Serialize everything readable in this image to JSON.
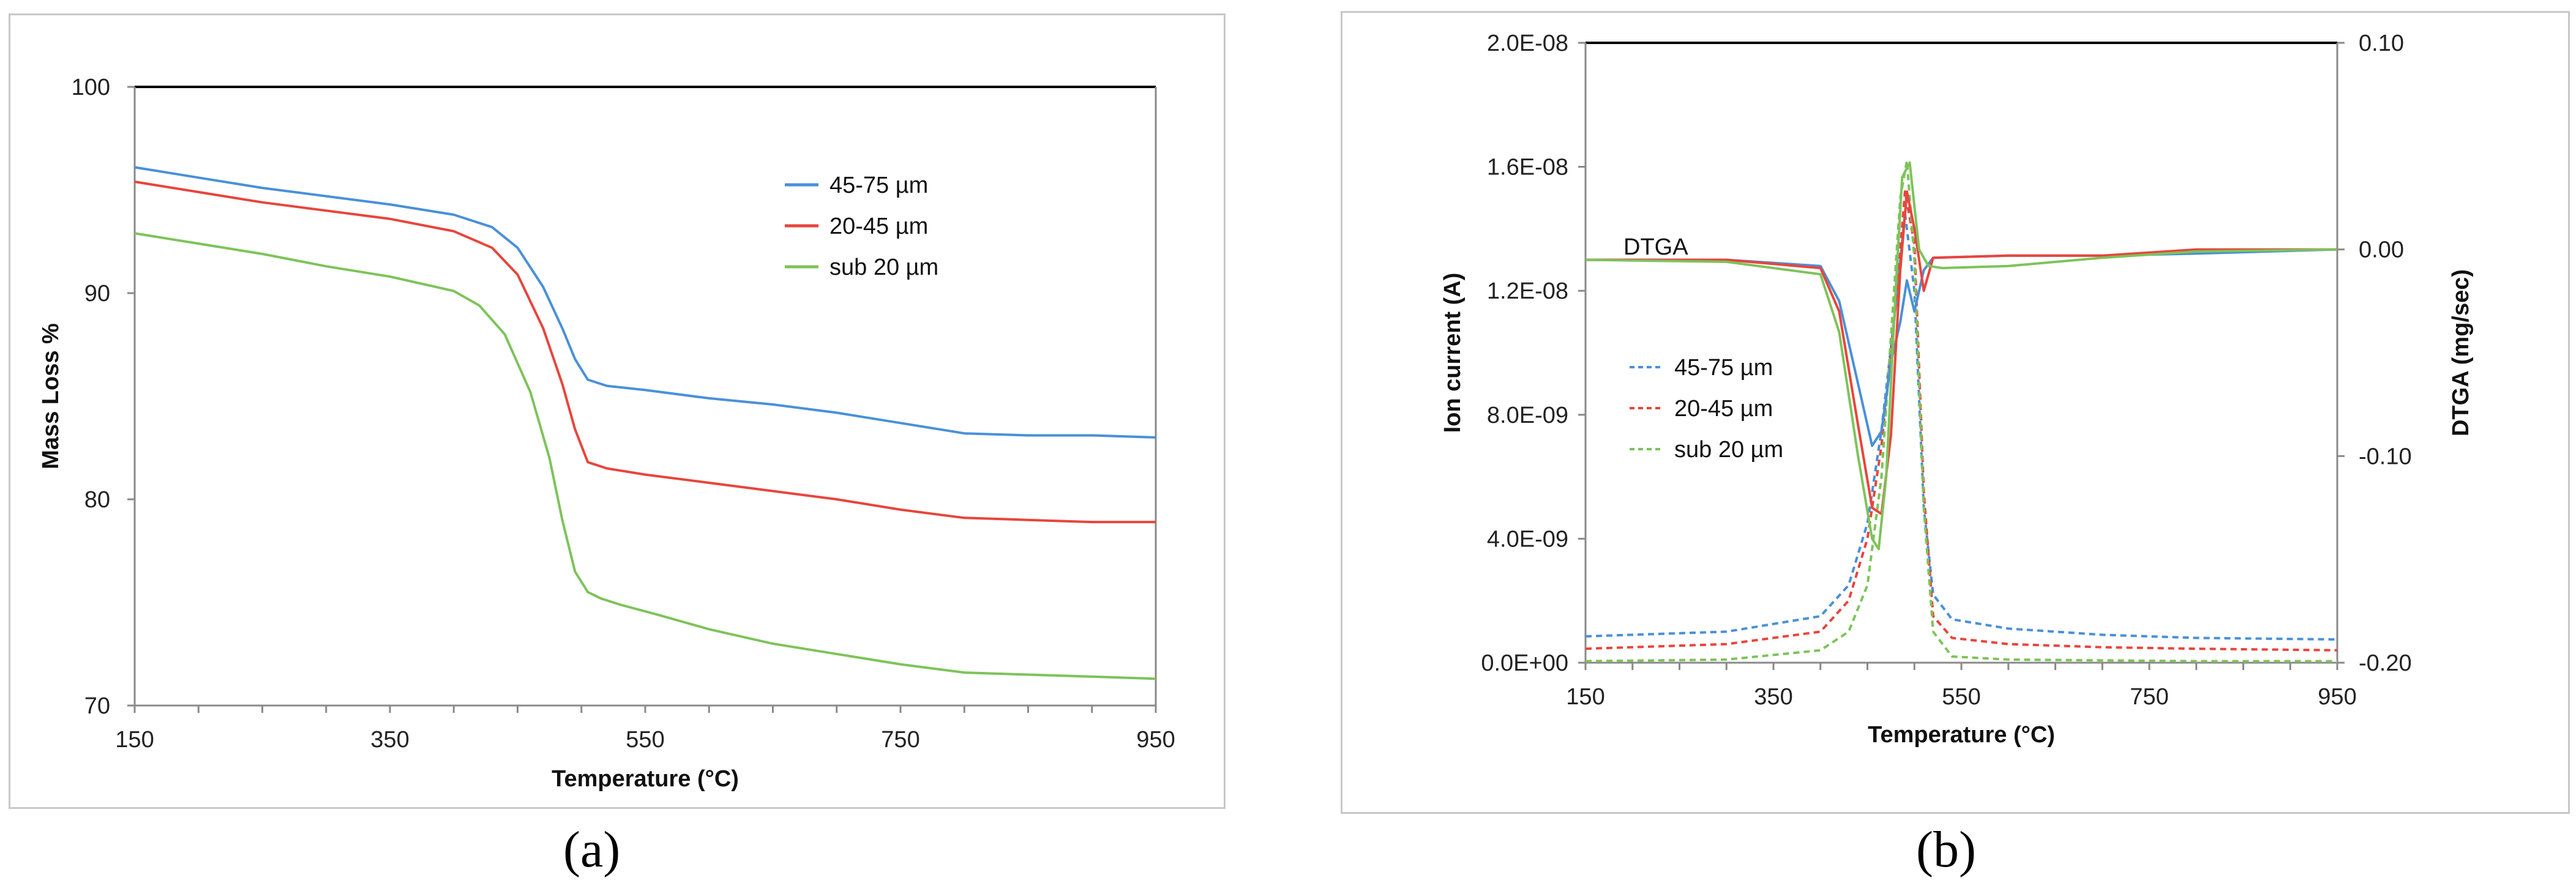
{
  "panel_a_letter": "(a)",
  "panel_b_letter": "(b)",
  "chart_data": [
    {
      "type": "line",
      "panel": "a",
      "xlabel": "Temperature (°C)",
      "ylabel": "Mass Loss %",
      "xlim": [
        150,
        950
      ],
      "ylim": [
        70,
        100
      ],
      "xticks": [
        150,
        350,
        550,
        750,
        950
      ],
      "yticks": [
        70,
        80,
        90,
        100
      ],
      "legend_position": "top-right",
      "colors": {
        "45-75 µm": "#4a90d9",
        "20-45 µm": "#e8453c",
        "sub 20 µm": "#7dc35a"
      },
      "series": [
        {
          "name": "45-75 µm",
          "color": "#4a90d9",
          "x": [
            150,
            200,
            250,
            300,
            350,
            400,
            430,
            450,
            470,
            485,
            495,
            505,
            520,
            550,
            600,
            650,
            700,
            750,
            800,
            850,
            900,
            950
          ],
          "y": [
            96.1,
            95.6,
            95.1,
            94.7,
            94.3,
            93.8,
            93.2,
            92.2,
            90.3,
            88.3,
            86.8,
            85.8,
            85.5,
            85.3,
            84.9,
            84.6,
            84.2,
            83.7,
            83.2,
            83.1,
            83.1,
            83.0
          ]
        },
        {
          "name": "20-45 µm",
          "color": "#e8453c",
          "x": [
            150,
            200,
            250,
            300,
            350,
            400,
            430,
            450,
            470,
            485,
            495,
            505,
            520,
            550,
            600,
            650,
            700,
            750,
            800,
            850,
            900,
            950
          ],
          "y": [
            95.4,
            94.9,
            94.4,
            94.0,
            93.6,
            93.0,
            92.2,
            90.9,
            88.3,
            85.6,
            83.4,
            81.8,
            81.5,
            81.2,
            80.8,
            80.4,
            80.0,
            79.5,
            79.1,
            79.0,
            78.9,
            78.9
          ]
        },
        {
          "name": "sub 20 µm",
          "color": "#7dc35a",
          "x": [
            150,
            200,
            250,
            300,
            350,
            400,
            420,
            440,
            460,
            475,
            485,
            495,
            505,
            515,
            530,
            560,
            600,
            650,
            700,
            750,
            800,
            850,
            900,
            950
          ],
          "y": [
            92.9,
            92.4,
            91.9,
            91.3,
            90.8,
            90.1,
            89.4,
            88.0,
            85.2,
            82.0,
            79.0,
            76.5,
            75.5,
            75.2,
            74.9,
            74.4,
            73.7,
            73.0,
            72.5,
            72.0,
            71.6,
            71.5,
            71.4,
            71.3
          ]
        }
      ]
    },
    {
      "type": "line",
      "panel": "b",
      "xlabel": "Temperature (°C)",
      "ylabel": "Ion current (A)",
      "y2label": "DTGA (mg/sec)",
      "annotation": "DTGA",
      "xlim": [
        150,
        950
      ],
      "ylim": [
        0,
        2e-08
      ],
      "y2lim": [
        -0.2,
        0.1
      ],
      "xticks": [
        150,
        350,
        550,
        750,
        950
      ],
      "yticks": [
        0,
        4e-09,
        8e-09,
        1.2e-08,
        1.6e-08,
        2e-08
      ],
      "ytick_labels": [
        "0.0E+00",
        "4.0E-09",
        "8.0E-09",
        "1.2E-08",
        "1.6E-08",
        "2.0E-08"
      ],
      "y2ticks": [
        -0.2,
        -0.1,
        0.0,
        0.1
      ],
      "y2tick_labels": [
        "-0.20",
        "-0.10",
        "0.00",
        "0.10"
      ],
      "legend_position": "middle-left",
      "colors": {
        "45-75 µm": "#4a90d9",
        "20-45 µm": "#e8453c",
        "sub 20 µm": "#7dc35a"
      },
      "series": [
        {
          "name": "45-75 µm",
          "color": "#4a90d9",
          "axis": "left",
          "style": "dashed",
          "x": [
            150,
            300,
            400,
            430,
            450,
            465,
            480,
            490,
            500,
            510,
            520,
            540,
            600,
            700,
            800,
            950
          ],
          "y": [
            8.5e-10,
            1e-09,
            1.5e-09,
            2.5e-09,
            4.5e-09,
            7.5e-09,
            1.15e-08,
            1.45e-08,
            1.2e-08,
            5e-09,
            2.2e-09,
            1.4e-09,
            1.1e-09,
            9e-10,
            8e-10,
            7.5e-10
          ]
        },
        {
          "name": "20-45 µm",
          "color": "#e8453c",
          "axis": "left",
          "style": "dashed",
          "x": [
            150,
            300,
            400,
            430,
            450,
            465,
            480,
            490,
            500,
            510,
            520,
            540,
            600,
            700,
            800,
            950
          ],
          "y": [
            4.5e-10,
            6e-10,
            1e-09,
            2e-09,
            4e-09,
            7e-09,
            1.15e-08,
            1.52e-08,
            1.35e-08,
            5.5e-09,
            1.5e-09,
            8e-10,
            6e-10,
            5e-10,
            4.5e-10,
            4e-10
          ]
        },
        {
          "name": "sub 20 µm",
          "color": "#7dc35a",
          "axis": "left",
          "style": "dashed",
          "x": [
            150,
            300,
            400,
            430,
            450,
            465,
            475,
            485,
            492,
            500,
            510,
            520,
            540,
            600,
            800,
            950
          ],
          "y": [
            5e-11,
            1e-10,
            4e-10,
            1e-09,
            2.5e-09,
            6e-09,
            1.05e-08,
            1.5e-08,
            1.62e-08,
            1.3e-08,
            5e-09,
            1e-09,
            2e-10,
            1e-10,
            5e-11,
            5e-11
          ]
        },
        {
          "name": "45-75 µm DTGA",
          "color": "#4a90d9",
          "axis": "right",
          "style": "solid",
          "x": [
            150,
            300,
            400,
            420,
            440,
            455,
            465,
            475,
            485,
            492,
            500,
            510,
            520,
            600,
            700,
            800,
            950
          ],
          "y": [
            -0.005,
            -0.005,
            -0.008,
            -0.025,
            -0.065,
            -0.095,
            -0.088,
            -0.055,
            -0.035,
            -0.015,
            -0.03,
            -0.01,
            -0.004,
            -0.003,
            -0.003,
            -0.002,
            0.0
          ]
        },
        {
          "name": "20-45 µm DTGA",
          "color": "#e8453c",
          "axis": "right",
          "style": "solid",
          "x": [
            150,
            300,
            400,
            420,
            440,
            455,
            465,
            475,
            485,
            492,
            500,
            510,
            520,
            600,
            700,
            800,
            950
          ],
          "y": [
            -0.005,
            -0.005,
            -0.009,
            -0.03,
            -0.085,
            -0.125,
            -0.128,
            -0.09,
            -0.01,
            0.028,
            0.01,
            -0.02,
            -0.004,
            -0.003,
            -0.003,
            0.0,
            0.0
          ]
        },
        {
          "name": "sub 20 µm DTGA",
          "color": "#7dc35a",
          "axis": "right",
          "style": "solid",
          "x": [
            150,
            300,
            400,
            420,
            440,
            455,
            462,
            470,
            480,
            487,
            495,
            505,
            515,
            530,
            600,
            700,
            800,
            950
          ],
          "y": [
            -0.005,
            -0.006,
            -0.012,
            -0.04,
            -0.1,
            -0.14,
            -0.145,
            -0.11,
            -0.02,
            0.035,
            0.042,
            0.0,
            -0.008,
            -0.009,
            -0.008,
            -0.004,
            -0.001,
            0.0
          ]
        }
      ]
    }
  ]
}
